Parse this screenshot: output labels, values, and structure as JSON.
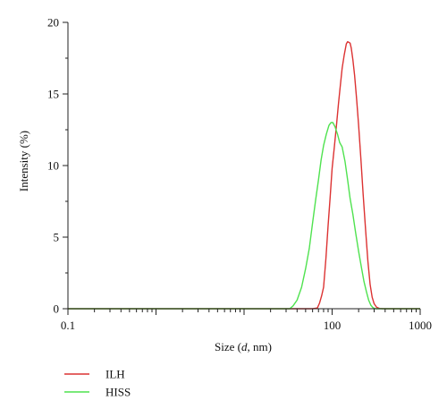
{
  "chart_data": {
    "type": "line",
    "xscale": "log",
    "xlim": [
      0.1,
      1000
    ],
    "ylim": [
      0,
      20
    ],
    "x_ticks": [
      0.1,
      1,
      10,
      100,
      1000
    ],
    "x_tick_labels": [
      "0.1",
      "",
      "",
      "100",
      "1000"
    ],
    "y_ticks": [
      0,
      5,
      10,
      15,
      20
    ],
    "y_tick_labels": [
      "0",
      "5",
      "10",
      "15",
      "20"
    ],
    "xlabel_prefix": "Size (",
    "xlabel_var": "d",
    "xlabel_suffix": ", nm)",
    "ylabel": "Intensity (%)",
    "grid": false,
    "legend_position": "bottom-left",
    "series": [
      {
        "name": "ILH",
        "color": "#dc3232",
        "x": [
          0.1,
          60,
          68,
          72,
          76,
          80,
          85,
          90,
          95,
          100,
          106,
          112,
          118,
          124,
          130,
          137,
          145,
          150,
          155,
          160,
          165,
          172,
          180,
          190,
          200,
          212,
          225,
          240,
          255,
          270,
          285,
          300,
          320,
          345,
          380,
          1000
        ],
        "y": [
          0,
          0,
          0.05,
          0.4,
          0.9,
          1.5,
          3.5,
          5.8,
          7.8,
          9.8,
          11.3,
          12.8,
          14.3,
          15.6,
          16.8,
          17.7,
          18.5,
          18.65,
          18.6,
          18.55,
          18.2,
          17.4,
          16.3,
          14.6,
          12.8,
          10.5,
          8.0,
          5.5,
          3.3,
          1.7,
          0.8,
          0.35,
          0.1,
          0.02,
          0,
          0
        ]
      },
      {
        "name": "HISS",
        "color": "#4fe24f",
        "x": [
          0.1,
          33,
          36,
          40,
          45,
          50,
          55,
          60,
          65,
          70,
          75,
          80,
          86,
          92,
          97,
          102,
          108,
          115,
          122,
          130,
          140,
          150,
          160,
          172,
          185,
          200,
          215,
          230,
          245,
          260,
          275,
          290,
          310,
          1000
        ],
        "y": [
          0,
          0,
          0.2,
          0.6,
          1.5,
          2.8,
          4.2,
          6.0,
          7.6,
          9.0,
          10.4,
          11.4,
          12.2,
          12.8,
          13.0,
          13.0,
          12.7,
          12.2,
          11.6,
          11.3,
          10.3,
          9.0,
          7.7,
          6.6,
          5.3,
          4.0,
          2.9,
          1.9,
          1.2,
          0.6,
          0.25,
          0.08,
          0,
          0
        ]
      }
    ]
  }
}
